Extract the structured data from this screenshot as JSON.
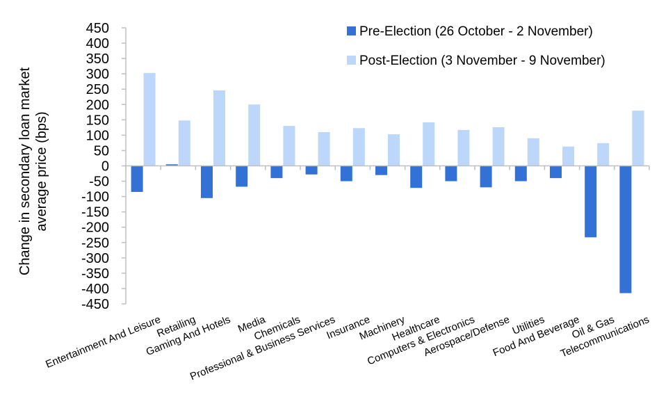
{
  "chart_data": {
    "type": "bar",
    "ylabel_lines": [
      "Change in  secondary loan market",
      "average price (bps)"
    ],
    "ylim": [
      -450,
      450
    ],
    "yticks": [
      450,
      400,
      350,
      300,
      250,
      200,
      150,
      100,
      50,
      0,
      -50,
      -100,
      -150,
      -200,
      -250,
      -300,
      -350,
      -400,
      -450
    ],
    "grid": false,
    "legend_position": "top-right",
    "categories": [
      "Entertainment And Leisure",
      "Retailing",
      "Gaming And Hotels",
      "Media",
      "Chemicals",
      "Professional & Business Services",
      "Insurance",
      "Machinery",
      "Healthcare",
      "Computers & Electronics",
      "Aerospace/Defense",
      "Utilities",
      "Food And Beverage",
      "Oil & Gas",
      "Telecommunications"
    ],
    "series": [
      {
        "name": "Pre-Election (26 October - 2 November)",
        "color": "#3271d6",
        "values": [
          -85,
          5,
          -105,
          -68,
          -40,
          -28,
          -50,
          -30,
          -72,
          -50,
          -70,
          -50,
          -40,
          -233,
          -415
        ]
      },
      {
        "name": "Post-Election (3 November - 9 November)",
        "color": "#bdd7fb",
        "values": [
          303,
          148,
          246,
          200,
          130,
          110,
          123,
          103,
          142,
          117,
          126,
          90,
          63,
          74,
          180
        ]
      }
    ]
  }
}
